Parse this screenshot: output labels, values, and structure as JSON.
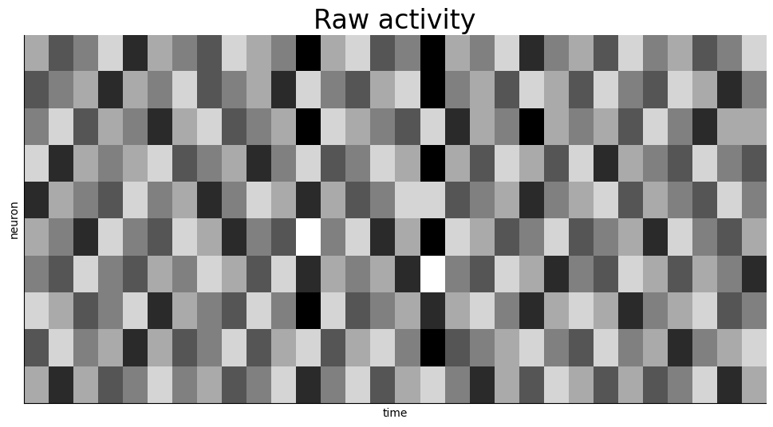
{
  "chart_data": {
    "type": "heatmap",
    "title": "Raw activity",
    "x_label": "time",
    "y_label": "neuron",
    "tick_labels": false,
    "color": "gray",
    "cells": [
      [
        1,
        -1,
        0,
        2,
        -2,
        1,
        0,
        -1,
        2,
        1,
        0,
        -3,
        1,
        2,
        -1,
        0,
        -3,
        1,
        0,
        2,
        -2,
        0,
        1,
        -1,
        2,
        0,
        1,
        -1,
        0,
        2
      ],
      [
        -1,
        0,
        1,
        -2,
        1,
        0,
        2,
        -1,
        0,
        1,
        -2,
        2,
        0,
        -1,
        1,
        2,
        -3,
        0,
        1,
        -1,
        2,
        1,
        -1,
        2,
        0,
        -1,
        2,
        1,
        -2,
        0
      ],
      [
        0,
        2,
        -1,
        1,
        0,
        -2,
        1,
        2,
        -1,
        0,
        1,
        -3,
        2,
        1,
        0,
        -1,
        2,
        -2,
        1,
        0,
        -3,
        1,
        0,
        1,
        -1,
        2,
        0,
        -2,
        1,
        1
      ],
      [
        2,
        -2,
        1,
        0,
        1,
        2,
        -1,
        0,
        1,
        -2,
        0,
        2,
        -1,
        0,
        2,
        1,
        -3,
        1,
        -1,
        2,
        1,
        -1,
        2,
        -2,
        1,
        0,
        -1,
        2,
        0,
        -1
      ],
      [
        -2,
        1,
        0,
        -1,
        2,
        0,
        1,
        -2,
        0,
        2,
        1,
        -2,
        1,
        -1,
        0,
        2,
        2,
        -1,
        0,
        1,
        -2,
        0,
        1,
        2,
        -1,
        1,
        0,
        -1,
        2,
        0
      ],
      [
        1,
        0,
        -2,
        2,
        0,
        -1,
        2,
        1,
        -2,
        0,
        -1,
        3,
        0,
        2,
        -2,
        1,
        -3,
        2,
        1,
        -1,
        0,
        2,
        -1,
        0,
        1,
        -2,
        2,
        0,
        -1,
        1
      ],
      [
        0,
        -1,
        2,
        0,
        -1,
        1,
        0,
        2,
        1,
        -1,
        2,
        -2,
        1,
        0,
        1,
        -2,
        3,
        0,
        -1,
        2,
        1,
        -2,
        0,
        -1,
        2,
        1,
        -1,
        1,
        0,
        -2
      ],
      [
        2,
        1,
        -1,
        0,
        2,
        -2,
        1,
        0,
        -1,
        2,
        0,
        -3,
        2,
        -1,
        0,
        1,
        -2,
        1,
        2,
        0,
        -2,
        1,
        2,
        1,
        -2,
        0,
        1,
        2,
        -1,
        0
      ],
      [
        -1,
        2,
        0,
        1,
        -2,
        1,
        -1,
        0,
        2,
        -1,
        1,
        2,
        -1,
        1,
        2,
        0,
        -3,
        -1,
        0,
        1,
        2,
        0,
        -1,
        2,
        0,
        1,
        -2,
        0,
        1,
        2
      ],
      [
        1,
        -2,
        1,
        -1,
        0,
        2,
        0,
        1,
        -1,
        0,
        2,
        -2,
        0,
        2,
        -1,
        1,
        2,
        0,
        -2,
        1,
        -1,
        2,
        1,
        -1,
        1,
        -1,
        0,
        2,
        -2,
        1
      ]
    ]
  }
}
